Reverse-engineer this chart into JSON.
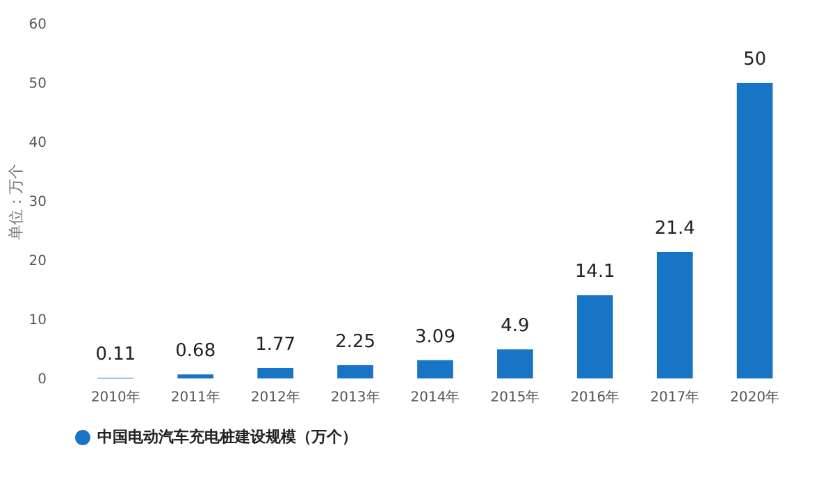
{
  "chart_data": {
    "type": "bar",
    "ylabel": "单位：万个",
    "categories": [
      "2010年",
      "2011年",
      "2012年",
      "2013年",
      "2014年",
      "2015年",
      "2016年",
      "2017年",
      "2020年"
    ],
    "series": [
      {
        "name": "中国电动汽车充电桩建设规模（万个）",
        "color": "#1874c4",
        "values": [
          0.11,
          0.68,
          1.77,
          2.25,
          3.09,
          4.9,
          14.1,
          21.4,
          50
        ]
      }
    ],
    "ylim": [
      0,
      60
    ],
    "yticks": [
      0,
      10,
      20,
      30,
      40,
      50,
      60
    ],
    "grid": false,
    "legend": "bottom",
    "data_labels": true
  }
}
